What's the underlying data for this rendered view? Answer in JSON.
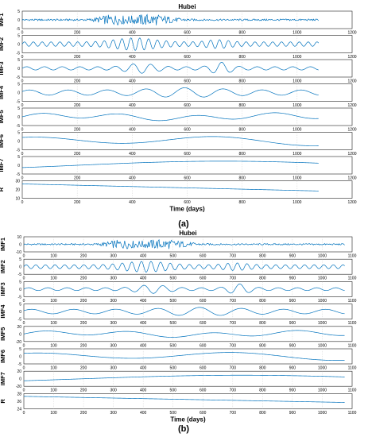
{
  "figure": {
    "caption_a": "(a)",
    "caption_b": "(b)",
    "line_color": "#0072BD"
  },
  "chart_data": [
    {
      "type": "line",
      "panel": "a",
      "title": "Hubei",
      "xlabel": "Time (days)",
      "xlim": [
        0,
        1200
      ],
      "xticks": [
        "0",
        "200",
        "400",
        "600",
        "800",
        "1000",
        "1200"
      ],
      "grid": true,
      "series": [
        {
          "name": "IMF1",
          "ylim": [
            -5,
            5
          ],
          "yticks": [
            "5",
            "0",
            "-5"
          ]
        },
        {
          "name": "IMF2",
          "ylim": [
            -5,
            5
          ],
          "yticks": [
            "5",
            "0",
            "-5"
          ]
        },
        {
          "name": "IMF3",
          "ylim": [
            -5,
            5
          ],
          "yticks": [
            "5",
            "0",
            "-5"
          ]
        },
        {
          "name": "IMF4",
          "ylim": [
            -5,
            5
          ],
          "yticks": [
            "5",
            "0",
            "-5"
          ]
        },
        {
          "name": "IMF5",
          "ylim": [
            -5,
            5
          ],
          "yticks": [
            "5",
            "0",
            "-5"
          ]
        },
        {
          "name": "IMF6",
          "ylim": [
            -5,
            5
          ],
          "yticks": [
            "5",
            "0",
            "-5"
          ]
        },
        {
          "name": "IMF7",
          "ylim": [
            -5,
            5
          ],
          "yticks": [
            "5",
            "0",
            "-5"
          ]
        },
        {
          "name": "R",
          "ylim": [
            10,
            30
          ],
          "yticks": [
            "30",
            "20",
            "10"
          ]
        }
      ]
    },
    {
      "type": "line",
      "panel": "b",
      "title": "Hubei",
      "xlabel": "Time (days)",
      "xlim": [
        0,
        1100
      ],
      "xticks": [
        "0",
        "100",
        "200",
        "300",
        "400",
        "500",
        "600",
        "700",
        "800",
        "900",
        "1000",
        "1100"
      ],
      "grid": true,
      "series": [
        {
          "name": "IMF1",
          "ylim": [
            -10,
            10
          ],
          "yticks": [
            "10",
            "0",
            "-10"
          ]
        },
        {
          "name": "IMF2",
          "ylim": [
            -5,
            5
          ],
          "yticks": [
            "5",
            "0",
            "-5"
          ]
        },
        {
          "name": "IMF3",
          "ylim": [
            -5,
            5
          ],
          "yticks": [
            "5",
            "0",
            "-5"
          ]
        },
        {
          "name": "IMF4",
          "ylim": [
            -5,
            5
          ],
          "yticks": [
            "5",
            "0",
            "-5"
          ]
        },
        {
          "name": "IMF5",
          "ylim": [
            -20,
            20
          ],
          "yticks": [
            "20",
            "0",
            "-20"
          ]
        },
        {
          "name": "IMF6",
          "ylim": [
            -5,
            5
          ],
          "yticks": [
            "5",
            "0",
            "-5"
          ]
        },
        {
          "name": "IMF7",
          "ylim": [
            -20,
            20
          ],
          "yticks": [
            "20",
            "0",
            "-20"
          ]
        },
        {
          "name": "R",
          "ylim": [
            24,
            28
          ],
          "yticks": [
            "28",
            "26",
            "24"
          ]
        }
      ]
    }
  ]
}
